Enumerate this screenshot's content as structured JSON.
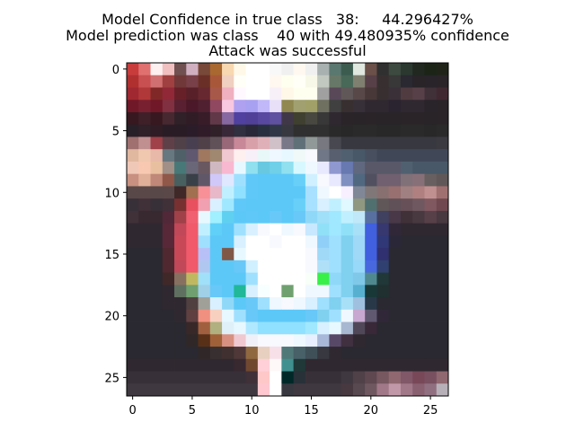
{
  "titles": [
    "Model Confidence in true class   38:     44.296427%",
    "Model prediction was class    40 with 49.480935% confidence",
    "Attack was successful"
  ],
  "chart_data": {
    "type": "heatmap",
    "title": "Model Confidence in true class   38:     44.296427%\nModel prediction was class    40 with 49.480935% confidence\nAttack was successful",
    "xlabel": "",
    "ylabel": "",
    "grid": false,
    "xlim": [
      -0.5,
      26.5
    ],
    "ylim": [
      26.5,
      -0.5
    ],
    "xticks": [
      0,
      5,
      10,
      15,
      20,
      25
    ],
    "yticks": [
      0,
      5,
      10,
      15,
      20,
      25
    ],
    "rows": 27,
    "cols": 27,
    "description_colors": {
      "background_dark": "#2a2a30",
      "sign_ring": "#5cc8f8",
      "sign_center": "#f4faff",
      "sign_border_red": "#f05a6a",
      "sign_border_blue": "#4060e0"
    },
    "pixels": [
      [
        "#c83c3c",
        "#e07070",
        "#fff0f0",
        "#f0c0c0",
        "#705050",
        "#d0b0c0",
        "#784838",
        "#a86830",
        "#f8d8b0",
        "#fff8e8",
        "#ffffff",
        "#ffffff",
        "#f8f8f8",
        "#f0f0f0",
        "#fff8f0",
        "#f0f0f0",
        "#a8b0b0",
        "#5a7870",
        "#3c5c50",
        "#e0e8e0",
        "#6a5048",
        "#303030",
        "#3c4a40",
        "#2a3830",
        "#202820",
        "#1c2418",
        "#202418"
      ],
      [
        "#b03030",
        "#c85050",
        "#d07070",
        "#a04040",
        "#703838",
        "#784048",
        "#6a3028",
        "#a85838",
        "#f0d0c0",
        "#fffff8",
        "#ffffff",
        "#ffffff",
        "#fff8f0",
        "#fffff0",
        "#fffff8",
        "#f8f8e8",
        "#c0c8c0",
        "#687868",
        "#486858",
        "#808070",
        "#584048",
        "#383030",
        "#383838",
        "#2a2830",
        "#282428",
        "#28242a",
        "#2a2428"
      ],
      [
        "#a02830",
        "#b03838",
        "#802828",
        "#902838",
        "#682028",
        "#582028",
        "#682830",
        "#a85848",
        "#f0b0c0",
        "#fff8ff",
        "#ffffff",
        "#ffffff",
        "#f8f0f8",
        "#fff8e8",
        "#fffff0",
        "#fffff0",
        "#a0a0a0",
        "#584858",
        "#605858",
        "#584848",
        "#483838",
        "#383030",
        "#3a3038",
        "#503c40",
        "#584048",
        "#403038",
        "#402830"
      ],
      [
        "#701828",
        "#782030",
        "#701828",
        "#803040",
        "#582030",
        "#4a1828",
        "#502030",
        "#904860",
        "#f8c8e0",
        "#b0a0f0",
        "#a8a0f0",
        "#c0b8f8",
        "#e8e0f8",
        "#908850",
        "#a0a070",
        "#a0a068",
        "#707060",
        "#404040",
        "#383030",
        "#383038",
        "#302830",
        "#302830",
        "#2a2430",
        "#302830",
        "#302830",
        "#28242a",
        "#2a2428"
      ],
      [
        "#381820",
        "#402028",
        "#381820",
        "#482830",
        "#302028",
        "#301c24",
        "#381c28",
        "#603848",
        "#8868a0",
        "#5040a0",
        "#504098",
        "#5848a0",
        "#6050a0",
        "#403848",
        "#404030",
        "#484840",
        "#383838",
        "#302830",
        "#2a2428",
        "#282428",
        "#2a2428",
        "#282428",
        "#282428",
        "#2a2428",
        "#2a2428",
        "#282428",
        "#2a2428"
      ],
      [
        "#282028",
        "#302028",
        "#301c24",
        "#2a1c24",
        "#2a1c24",
        "#2a1c28",
        "#301c28",
        "#302028",
        "#382838",
        "#303040",
        "#282838",
        "#283040",
        "#303848",
        "#383840",
        "#303030",
        "#303030",
        "#303030",
        "#2a2a2a",
        "#282828",
        "#2a2a2a",
        "#2a2a2a",
        "#282828",
        "#282828",
        "#2a2a2a",
        "#2a2a2a",
        "#282828",
        "#2a2a2a"
      ],
      [
        "#a07070",
        "#c09090",
        "#a04048",
        "#604048",
        "#504048",
        "#484050",
        "#504048",
        "#605058",
        "#986878",
        "#c88898",
        "#d8a0a8",
        "#e0b0b8",
        "#d0c0c8",
        "#787888",
        "#607078",
        "#909898",
        "#787880",
        "#484850",
        "#383840",
        "#383840",
        "#383840",
        "#383840",
        "#383840",
        "#383840",
        "#383840",
        "#383840",
        "#3a3a40"
      ],
      [
        "#e0b8a0",
        "#f0c8b0",
        "#e8b8a8",
        "#687880",
        "#506068",
        "#605870",
        "#a07860",
        "#a08870",
        "#f0c8d0",
        "#fff0f0",
        "#f8f0f8",
        "#e8f8f8",
        "#f0f8ff",
        "#e8f8ff",
        "#f0f8f8",
        "#f8f8ff",
        "#707888",
        "#586070",
        "#506070",
        "#485868",
        "#485060",
        "#404858",
        "#404858",
        "#404858",
        "#404858",
        "#404858",
        "#404858"
      ],
      [
        "#f0c8b8",
        "#f8c8b0",
        "#e8c0a0",
        "#a09088",
        "#487878",
        "#6a6878",
        "#6a5860",
        "#d0b8c0",
        "#f8b8d0",
        "#e8f8ff",
        "#90e0f0",
        "#68c8e0",
        "#70d0e8",
        "#90e0f0",
        "#d8f8ff",
        "#f0f8ff",
        "#e8e8ff",
        "#9098d0",
        "#6878b0",
        "#606880",
        "#585868",
        "#585868",
        "#585868",
        "#506070",
        "#485868",
        "#485868",
        "#485868"
      ],
      [
        "#c89080",
        "#e0b098",
        "#c08878",
        "#905848",
        "#486060",
        "#3a4048",
        "#605868",
        "#d0c8f8",
        "#e0e8ff",
        "#a0e0ff",
        "#60c8f8",
        "#5cc8f8",
        "#5cc8f8",
        "#5cc8f8",
        "#68d0f8",
        "#d0f0ff",
        "#f8f8ff",
        "#e8e8ff",
        "#8090c0",
        "#506880",
        "#505060",
        "#706070",
        "#706070",
        "#807078",
        "#887078",
        "#686060",
        "#605858"
      ],
      [
        "#584848",
        "#5a4848",
        "#584848",
        "#5a4848",
        "#402828",
        "#a07050",
        "#f89098",
        "#e8b8c8",
        "#c0f0ff",
        "#90e0ff",
        "#60c8f8",
        "#5cc8f8",
        "#5cc8f8",
        "#5cc8f8",
        "#5cc8f8",
        "#a8e0ff",
        "#f0f8ff",
        "#ffffff",
        "#f8f0ff",
        "#808898",
        "#807878",
        "#887070",
        "#987070",
        "#a08080",
        "#b08080",
        "#c09090",
        "#a07070"
      ],
      [
        "#383038",
        "#403038",
        "#383038",
        "#403038",
        "#783030",
        "#e85060",
        "#f0a0b0",
        "#d8f0ff",
        "#a0e8ff",
        "#60c8f8",
        "#5cc8f8",
        "#5cc8f8",
        "#5cc8f8",
        "#5cc8f8",
        "#68d0f8",
        "#a8e0ff",
        "#d8f0ff",
        "#c0f0ff",
        "#e0f8ff",
        "#909880",
        "#507070",
        "#605858",
        "#605058",
        "#685058",
        "#705860",
        "#805860",
        "#704850"
      ],
      [
        "#403038",
        "#382830",
        "#382830",
        "#502838",
        "#a04048",
        "#f06070",
        "#e8f8ff",
        "#a0f0ff",
        "#60d0f0",
        "#5cc8f8",
        "#60c8f8",
        "#5cc8f8",
        "#68c8f8",
        "#5cc8f8",
        "#68c8f8",
        "#90d8f8",
        "#a0e0f8",
        "#a0e8ff",
        "#c0f0ff",
        "#c0e8f8",
        "#5870a0",
        "#404060",
        "#483848",
        "#403038",
        "#483840",
        "#584048",
        "#483840"
      ],
      [
        "#302830",
        "#302830",
        "#302830",
        "#582838",
        "#c04858",
        "#f05a6a",
        "#c0f0ff",
        "#60d0f8",
        "#5cc8f8",
        "#a0e0ff",
        "#d8f0ff",
        "#f8f8ff",
        "#ffffff",
        "#f0f8ff",
        "#f8f8ff",
        "#c8e8ff",
        "#90e0f8",
        "#a0e8ff",
        "#90e0f8",
        "#a8e0f8",
        "#4060e0",
        "#383870",
        "#302838",
        "#302830",
        "#302830",
        "#302830",
        "#302830"
      ],
      [
        "#302830",
        "#302830",
        "#302830",
        "#582838",
        "#c84858",
        "#f05a6a",
        "#a0e0ff",
        "#5cc8f8",
        "#5cc8f8",
        "#d8f0ff",
        "#ffffff",
        "#ffffff",
        "#f8f8ff",
        "#ffffff",
        "#ffffff",
        "#f0f8ff",
        "#90d0f8",
        "#a0e0ff",
        "#80d0f0",
        "#a0d8f8",
        "#4060e0",
        "#303878",
        "#2a2838",
        "#2a2830",
        "#2a2830",
        "#2a2830",
        "#2a2830"
      ],
      [
        "#2a2830",
        "#2a2830",
        "#2a2830",
        "#502830",
        "#c84858",
        "#f05a6a",
        "#b8c0f8",
        "#5cc8f8",
        "#805848",
        "#e8f8ff",
        "#ffffff",
        "#ffffff",
        "#ffffff",
        "#ffffff",
        "#ffffff",
        "#f8f8ff",
        "#a0d8f8",
        "#a0e0ff",
        "#80d0f0",
        "#a0d8f8",
        "#4060e0",
        "#303070",
        "#2a2830",
        "#2a2830",
        "#2a2830",
        "#2a2830",
        "#2a2830"
      ],
      [
        "#2a2830",
        "#2a2830",
        "#2a2830",
        "#502830",
        "#c04858",
        "#f05a6a",
        "#b0c8f0",
        "#5cc8f8",
        "#5cc8f8",
        "#68c8f8",
        "#d0f0ff",
        "#ffffff",
        "#ffffff",
        "#ffffff",
        "#ffffff",
        "#f8f8ff",
        "#b0e0f8",
        "#a0e0ff",
        "#80d0f0",
        "#98d8f8",
        "#4868e0",
        "#304070",
        "#2a2830",
        "#2a2830",
        "#2a2830",
        "#2a2830",
        "#2a2830"
      ],
      [
        "#2a2830",
        "#2a2830",
        "#2a2830",
        "#402828",
        "#887060",
        "#c0b860",
        "#a0e0f8",
        "#5cc8f8",
        "#5cc8f8",
        "#5cc8f8",
        "#a0e0ff",
        "#ffffff",
        "#ffffff",
        "#ffffff",
        "#ffffff",
        "#f8fff8",
        "#38f048",
        "#90d8f8",
        "#80d0f0",
        "#80c8e8",
        "#508890",
        "#203838",
        "#2a2830",
        "#2a2830",
        "#2a2830",
        "#2a2830",
        "#2a2830"
      ],
      [
        "#2a2830",
        "#2a2830",
        "#2a2830",
        "#302830",
        "#607060",
        "#70a070",
        "#a0d0e8",
        "#68c8f8",
        "#5cc8f8",
        "#20b898",
        "#d8f0ff",
        "#f8ffff",
        "#ffffff",
        "#70a070",
        "#ffffff",
        "#f0f8ff",
        "#f0f8ff",
        "#a0e0ff",
        "#80d0f0",
        "#58b0d0",
        "#183838",
        "#203030",
        "#2a2830",
        "#2a2830",
        "#2a2830",
        "#2a2830",
        "#2a2830"
      ],
      [
        "#2a2830",
        "#2a2830",
        "#2a2830",
        "#302830",
        "#302830",
        "#504040",
        "#a0a098",
        "#d8f0ff",
        "#90d8f8",
        "#5cc8f8",
        "#68c8f8",
        "#a0e0ff",
        "#f0f8ff",
        "#f8f8ff",
        "#f0f8ff",
        "#d8f0ff",
        "#a0e0ff",
        "#80d0f0",
        "#a8e0f8",
        "#a0c0e0",
        "#283848",
        "#2a2830",
        "#2a2830",
        "#2a2830",
        "#2a2830",
        "#2a2830",
        "#2a2830"
      ],
      [
        "#2a2830",
        "#2a2830",
        "#2a2830",
        "#2a2830",
        "#302830",
        "#604040",
        "#f09080",
        "#f8d0c0",
        "#e8f8ff",
        "#a0e0ff",
        "#68c8f8",
        "#5cc8f8",
        "#5cc8f8",
        "#5cc8f8",
        "#5cc8f8",
        "#68c8f8",
        "#80d0f0",
        "#a0e0ff",
        "#f0f8ff",
        "#c8a8d0",
        "#605870",
        "#302838",
        "#2a2830",
        "#2a2830",
        "#2a2830",
        "#2a2830",
        "#2a2830"
      ],
      [
        "#2a2830",
        "#2a2830",
        "#2a2830",
        "#2a2830",
        "#2a2830",
        "#382828",
        "#a06040",
        "#b0b080",
        "#e0f0f8",
        "#e8f8ff",
        "#b0e8ff",
        "#90e0ff",
        "#90e0ff",
        "#90e0ff",
        "#90e0ff",
        "#a0e8ff",
        "#d8f0ff",
        "#e8f8ff",
        "#a8b8d0",
        "#504858",
        "#382838",
        "#2a2830",
        "#2a2830",
        "#2a2830",
        "#2a2830",
        "#2a2830",
        "#2a2830"
      ],
      [
        "#2a2830",
        "#2a2830",
        "#2a2830",
        "#2a2830",
        "#2a2830",
        "#302828",
        "#583018",
        "#a06038",
        "#d89080",
        "#f0c8d0",
        "#f0f0f8",
        "#f8f8ff",
        "#f8f8ff",
        "#f8f8ff",
        "#f0f8ff",
        "#e8f0ff",
        "#a8b8d8",
        "#584868",
        "#403040",
        "#302830",
        "#2a2830",
        "#2a2830",
        "#2a2830",
        "#2a2830",
        "#2a2830",
        "#2a2830",
        "#2a2830"
      ],
      [
        "#2a2830",
        "#2a2830",
        "#2a2830",
        "#2a2830",
        "#2a2830",
        "#2a2830",
        "#302828",
        "#383030",
        "#403030",
        "#503838",
        "#906840",
        "#e8d0c0",
        "#f8e0e8",
        "#507878",
        "#486068",
        "#405058",
        "#383840",
        "#302830",
        "#2a2830",
        "#2a2830",
        "#2a2830",
        "#2a2830",
        "#2a2830",
        "#2a2830",
        "#2a2830",
        "#2a2830",
        "#2a2830"
      ],
      [
        "#302830",
        "#302830",
        "#302830",
        "#302830",
        "#302830",
        "#302830",
        "#302830",
        "#302830",
        "#302830",
        "#382830",
        "#704830",
        "#ffd0d8",
        "#fff8f8",
        "#409090",
        "#203838",
        "#302830",
        "#302830",
        "#302830",
        "#302830",
        "#302830",
        "#302830",
        "#302830",
        "#302830",
        "#302830",
        "#302830",
        "#302830",
        "#302830"
      ],
      [
        "#383038",
        "#383038",
        "#383038",
        "#383038",
        "#383038",
        "#383038",
        "#383038",
        "#383038",
        "#383038",
        "#383038",
        "#403038",
        "#ffc8c8",
        "#ffffff",
        "#002828",
        "#283038",
        "#383038",
        "#383038",
        "#383038",
        "#403840",
        "#504048",
        "#604850",
        "#785860",
        "#906870",
        "#805868",
        "#784858",
        "#785060",
        "#906870"
      ],
      [
        "#403840",
        "#403840",
        "#403840",
        "#403840",
        "#403840",
        "#403840",
        "#403840",
        "#403840",
        "#403840",
        "#403840",
        "#403840",
        "#ffc8d0",
        "#ffffff",
        "#383840",
        "#403840",
        "#403840",
        "#403840",
        "#403840",
        "#483840",
        "#584850",
        "#705860",
        "#a07888",
        "#c098a8",
        "#a07888",
        "#886070",
        "#907080",
        "#b8b0b8"
      ]
    ]
  }
}
